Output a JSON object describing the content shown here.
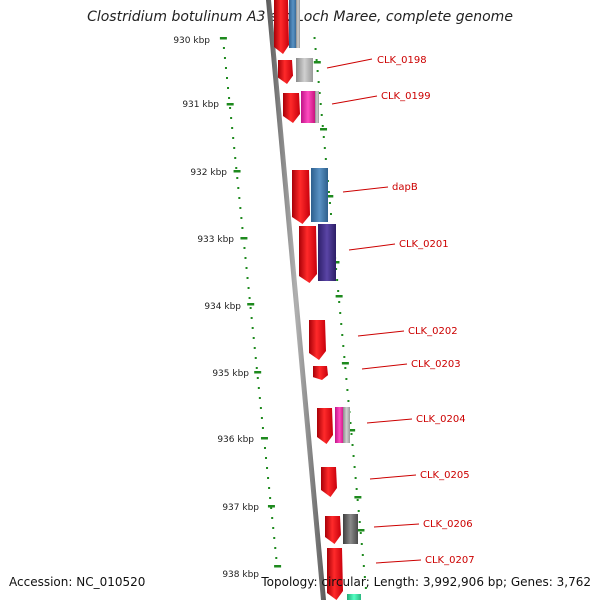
{
  "title": "Clostridium botulinum A3 str. Loch Maree, complete genome",
  "footer": {
    "accession": "Accession: NC_010520",
    "topology": "Topology: circular; Length: 3,992,906 bp; Genes: 3,762"
  },
  "scale_labels": [
    "930 kbp",
    "931 kbp",
    "932 kbp",
    "933 kbp",
    "934 kbp",
    "935 kbp",
    "936 kbp",
    "937 kbp",
    "938 kbp"
  ],
  "gene_labels": [
    "CLK_0198",
    "CLK_0199",
    "dapB",
    "CLK_0201",
    "CLK_0202",
    "CLK_0203",
    "CLK_0204",
    "CLK_0205",
    "CLK_0206",
    "CLK_0207"
  ],
  "colors": {
    "backbone": "#7a7a7a",
    "tick": "#1e8a1e",
    "label": "#cc0000",
    "gene": "#e8141e"
  },
  "feature_colors": [
    "red",
    "steel-blue",
    "gray",
    "magenta-pink",
    "indigo",
    "dark-gray",
    "aquamarine"
  ]
}
